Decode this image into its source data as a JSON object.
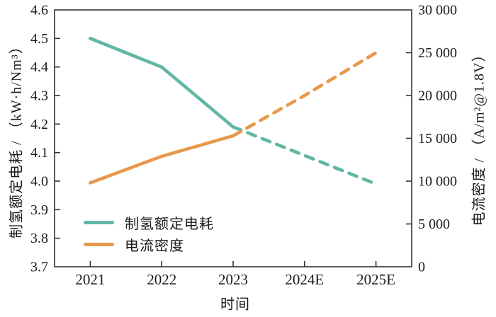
{
  "chart_data": {
    "type": "line",
    "title": "",
    "xlabel": "时间",
    "categories": [
      "2021",
      "2022",
      "2023",
      "2024E",
      "2025E"
    ],
    "left_axis": {
      "label": "制氢额定电耗 / （kW·h/Nm³）",
      "min": 3.7,
      "max": 4.6,
      "tick_step": 0.1,
      "tick_labels": [
        "3.7",
        "3.8",
        "3.9",
        "4.0",
        "4.1",
        "4.2",
        "4.3",
        "4.4",
        "4.5",
        "4.6"
      ]
    },
    "right_axis": {
      "label": "电流密度 / （A/m²@1.8V）",
      "min": 0,
      "max": 30000,
      "tick_step": 5000,
      "tick_labels": [
        "0",
        "5 000",
        "10 000",
        "15 000",
        "20 000",
        "25 000",
        "30 000"
      ]
    },
    "series": [
      {
        "name": "制氢额定电耗",
        "axis": "left",
        "color": "#61b6a4",
        "values": [
          4.5,
          4.4,
          4.19,
          4.09,
          3.99
        ],
        "solid_until_index": 2,
        "style_after": "dashed"
      },
      {
        "name": "电流密度",
        "axis": "right",
        "color": "#e8994b",
        "values": [
          9800,
          12900,
          15300,
          20000,
          25000
        ],
        "solid_until_index": 2,
        "style_after": "dashed"
      }
    ],
    "legend": {
      "position": "lower-left",
      "entries": [
        "制氢额定电耗",
        "电流密度"
      ]
    },
    "grid": false,
    "frame_color": "#333333",
    "background_color": "#ffffff"
  }
}
